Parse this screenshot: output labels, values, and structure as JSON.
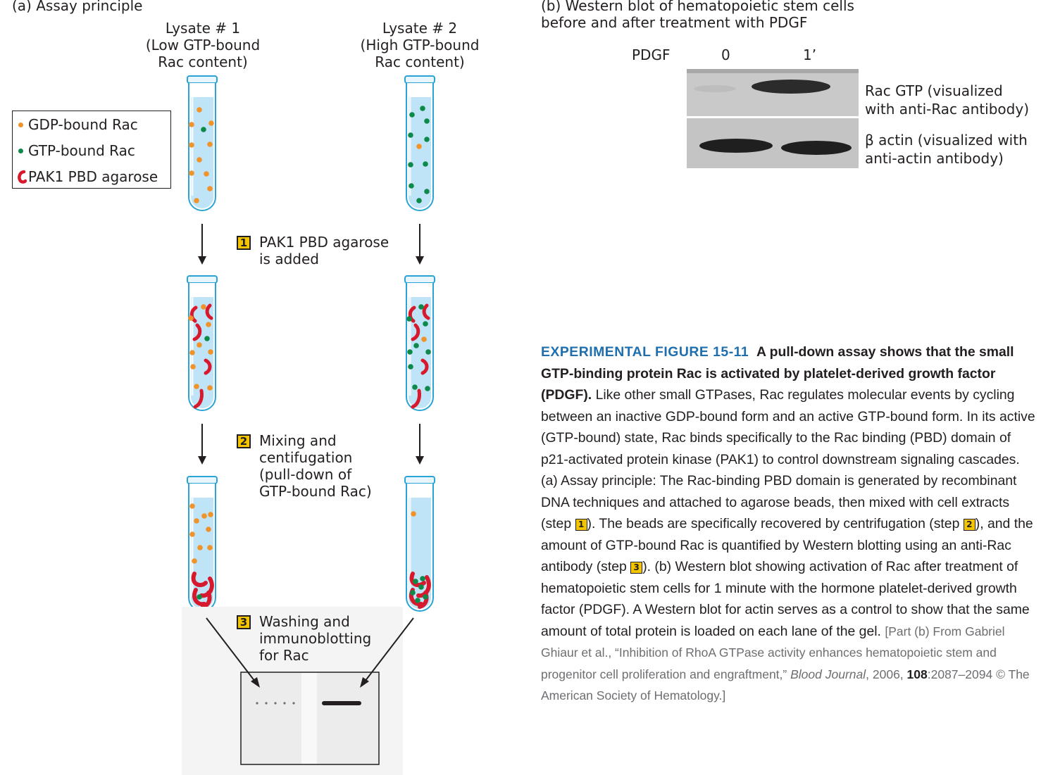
{
  "panel_a": {
    "title": "(a) Assay principle",
    "lysate1": {
      "line1": "Lysate # 1",
      "line2": "(Low GTP-bound",
      "line3": "Rac content)"
    },
    "lysate2": {
      "line1": "Lysate # 2",
      "line2": "(High GTP-bound",
      "line3": "Rac content)"
    },
    "legend": {
      "gdp": "GDP-bound Rac",
      "gtp": "GTP-bound Rac",
      "pak": "PAK1 PBD agarose"
    },
    "steps": [
      {
        "number": "1",
        "line1": "PAK1 PBD agarose",
        "line2": "is added"
      },
      {
        "number": "2",
        "line1": "Mixing and",
        "line2": "centifugation",
        "line3": "(pull-down of",
        "line4": "GTP-bound Rac)"
      },
      {
        "number": "3",
        "line1": "Washing and",
        "line2": "immunoblotting",
        "line3": "for Rac"
      }
    ]
  },
  "panel_b": {
    "title_line1": "(b) Western blot of hematopoietic stem cells",
    "title_line2": "before and after treatment with PDGF",
    "pdgf_label": "PDGF",
    "lane1": "0",
    "lane2": "1’",
    "band1_line1": "Rac GTP (visualized",
    "band1_line2": "with anti-Rac antibody)",
    "band2_line1": "β actin (visualized with",
    "band2_line2": "anti-actin antibody)"
  },
  "caption": {
    "fig_label": "EXPERIMENTAL FIGURE 15-11",
    "bold_title": "A pull-down assay shows that the small GTP-binding protein Rac is activated by platelet-derived growth factor (PDGF).",
    "body_part1": "Like other small GTPases, Rac regulates molecular events by cycling between an inactive GDP-bound form and an active GTP-bound form. In its active (GTP-bound) state, Rac binds specifically to the Rac binding (PBD) domain of p21-activated protein kinase (PAK1) to control downstream signaling cascades. (a) Assay principle: The Rac-binding PBD domain is generated by recombinant DNA techniques and attached to agarose beads, then mixed with cell extracts (step",
    "step1": "1",
    "body_part2": "). The beads are specifically recovered by centrifugation (step",
    "step2": "2",
    "body_part3": "), and the amount of GTP-bound Rac is quantified by Western blotting using an anti-Rac antibody (step",
    "step3": "3",
    "body_part4": "). (b) Western blot showing activation of Rac after treatment of hematopoietic stem cells for 1 minute with the hormone platelet-derived growth factor (PDGF). A Western blot for actin serves as a control to show that the same amount of total protein is loaded on each lane of the gel.",
    "cite_part1": "[Part (b) From Gabriel Ghiaur et al., “Inhibition of RhoA GTPase activity enhances hematopoietic stem and progenitor cell proliferation and engraftment,”",
    "cite_journal": "Blood Journal",
    "cite_part2": ", 2006,",
    "cite_volume": "108",
    "cite_part3": ":2087–2094 © The American Society of Hematology.]"
  },
  "colors": {
    "gdp_rac": "#f0932b",
    "gtp_rac": "#0d8a4a",
    "pak1_agarose": "#d7192e",
    "tube_liquid": "#bfe3f7",
    "tube_outline": "#2aa3d6",
    "step_badge": "#f2c500",
    "figure_label": "#1f6fae"
  }
}
